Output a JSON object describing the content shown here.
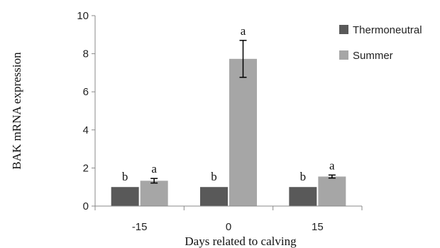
{
  "chart_data": {
    "type": "bar",
    "categories": [
      "-15",
      "0",
      "15"
    ],
    "series": [
      {
        "name": "Thermoneutral",
        "values": [
          1.0,
          1.0,
          1.0
        ],
        "color": "#595959",
        "labels": [
          "b",
          "b",
          "b"
        ]
      },
      {
        "name": "Summer",
        "values": [
          1.33,
          7.73,
          1.55
        ],
        "errors": [
          0.12,
          0.97,
          0.08
        ],
        "color": "#a6a6a6",
        "labels": [
          "a",
          "a",
          "a"
        ]
      }
    ],
    "xlabel": "Days related to calving",
    "ylabel": "BAK mRNA expression",
    "ylim": [
      0,
      10
    ],
    "yticks": [
      0,
      2,
      4,
      6,
      8,
      10
    ],
    "grid": false,
    "legend_position": "right"
  }
}
